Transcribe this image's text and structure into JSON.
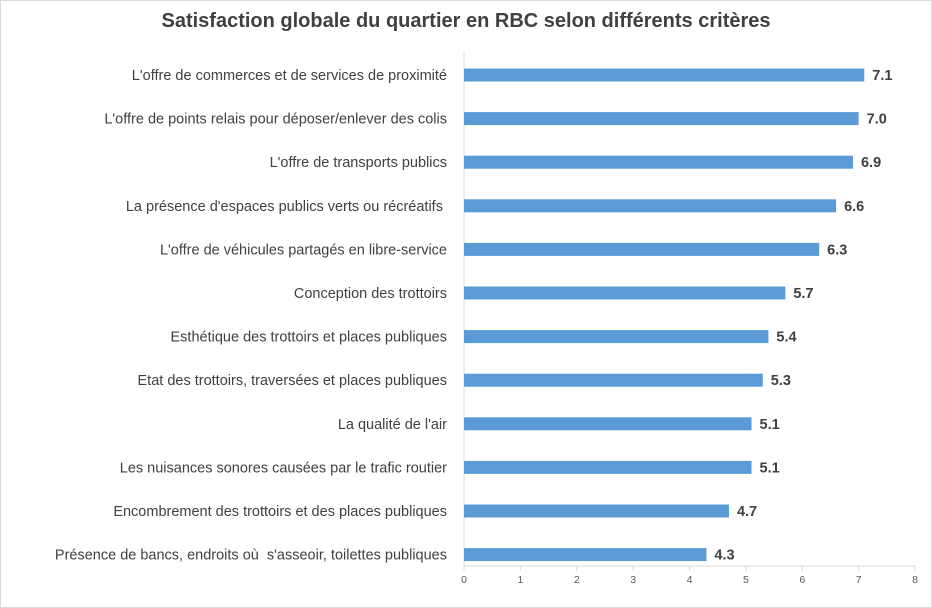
{
  "chart_data": {
    "type": "bar",
    "orientation": "horizontal",
    "title": "Satisfaction globale du quartier en RBC selon différents critères",
    "categories": [
      "L'offre de commerces et de services de proximité",
      "L'offre de points relais pour déposer/enlever des colis",
      "L'offre de transports publics",
      "La présence d'espaces publics verts ou récréatifs ",
      "L'offre de véhicules partagés en libre-service",
      "Conception des trottoirs",
      "Esthétique des trottoirs et places publiques",
      "Etat des trottoirs, traversées et places publiques",
      "La qualité de l'air",
      "Les nuisances sonores causées par le trafic routier",
      "Encombrement des trottoirs et des places publiques",
      "Présence de bancs, endroits où  s'asseoir, toilettes publiques"
    ],
    "values": [
      7.1,
      7.0,
      6.9,
      6.6,
      6.3,
      5.7,
      5.4,
      5.3,
      5.1,
      5.1,
      4.7,
      4.3
    ],
    "data_labels": [
      "7.1",
      "7.0",
      "6.9",
      "6.6",
      "6.3",
      "5.7",
      "5.4",
      "5.3",
      "5.1",
      "5.1",
      "4.7",
      "4.3"
    ],
    "xlim": [
      0,
      8
    ],
    "x_ticks": [
      "0",
      "1",
      "2",
      "3",
      "4",
      "5",
      "6",
      "7",
      "8"
    ],
    "xlabel": "",
    "ylabel": "",
    "grid": false,
    "legend": "none",
    "colors": {
      "bar": "#5b9bd5",
      "text": "#404040",
      "axis": "#d9d9d9",
      "tick_text": "#595959"
    }
  }
}
